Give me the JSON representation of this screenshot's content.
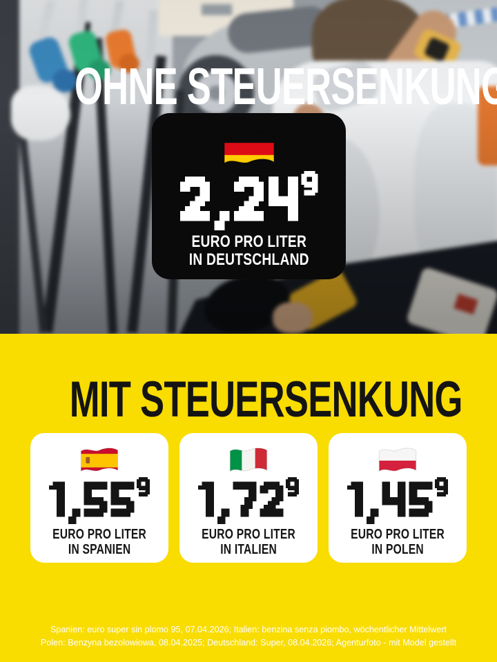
{
  "poster": {
    "hero": {
      "headline": "OHNE STEUERSENKUNG",
      "card": {
        "flag": "germany",
        "price": "2,24",
        "price_superscript": "9",
        "caption_line1": "EURO PRO LITER",
        "caption_line2": "IN DEUTSCHLAND"
      }
    },
    "reduced": {
      "headline": "MIT STEUERSENKUNG",
      "cards": [
        {
          "flag": "spain",
          "price": "1,55",
          "price_superscript": "9",
          "caption_line1": "EURO PRO LITER",
          "caption_line2": "IN SPANIEN"
        },
        {
          "flag": "italy",
          "price": "1,72",
          "price_superscript": "9",
          "caption_line1": "EURO PRO LITER",
          "caption_line2": "IN ITALIEN"
        },
        {
          "flag": "poland",
          "price": "1,45",
          "price_superscript": "9",
          "caption_line1": "EURO PRO LITER",
          "caption_line2": "IN POLEN"
        }
      ]
    },
    "footnote": {
      "line1": "Spanien: euro super sin plomo 95, 07.04.2026; Italien: benzina senza piombo, wöchentlicher Mittelwert",
      "line2": "Polen: Benzyna bezolowiowa, 08.04.2025; Deutschland: Super, 08.04.2026; Agenturfoto - mit Model gestellt"
    },
    "colors": {
      "background_yellow": "#F9DC00",
      "hero_card_black": "#0A0A0A",
      "card_white": "#FFFFFF",
      "headline_white": "#FFFFFF",
      "text_black": "#141414",
      "footnote_white": "#FFFFFF"
    },
    "flags": {
      "germany": {
        "type": "h",
        "stripes": [
          "#0A0A0A",
          "#DD0B15",
          "#FFCC00"
        ]
      },
      "spain": {
        "type": "h",
        "stripes": [
          "#C8102E",
          "#FFC400",
          "#C8102E"
        ],
        "ratios": [
          0.25,
          0.5,
          0.25
        ],
        "emblem": "#A05A2C"
      },
      "italy": {
        "type": "v",
        "stripes": [
          "#009246",
          "#F4F5F0",
          "#CE2B37"
        ]
      },
      "poland": {
        "type": "h",
        "stripes": [
          "#F5F6F5",
          "#D4213D"
        ]
      }
    }
  }
}
